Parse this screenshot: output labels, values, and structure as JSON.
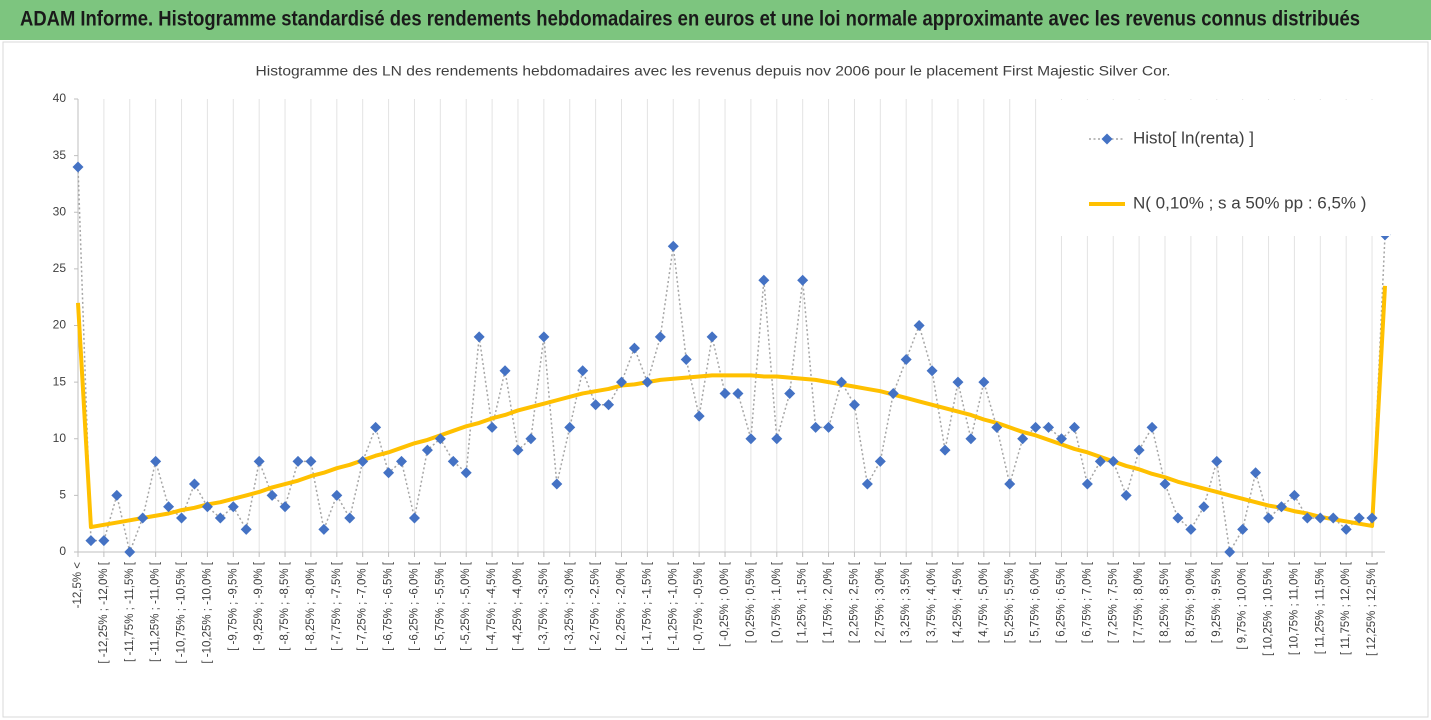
{
  "header": {
    "title": "ADAM Informe. Histogramme standardisé des rendements hebdomadaires en euros et une loi normale approximante avec les revenus connus distribués"
  },
  "chart_data": {
    "type": "line",
    "title": "Histogramme des LN des rendements hebdomadaires avec les revenus depuis nov 2006 pour le placement First Majestic Silver Cor.",
    "categories": [
      "-12,5% <",
      null,
      "[ -12,25% ; -12,0% [",
      null,
      "[ -11,75% ; -11,5% [",
      null,
      "[ -11,25% ; -11,0% [",
      null,
      "[ -10,75% ; -10,5% [",
      null,
      "[ -10,25% ; -10,0% [",
      null,
      "[ -9,75% ; -9,5% [",
      null,
      "[ -9,25% ; -9,0% [",
      null,
      "[ -8,75% ; -8,5% [",
      null,
      "[ -8,25% ; -8,0% [",
      null,
      "[ -7,75% ; -7,5% [",
      null,
      "[ -7,25% ; -7,0% [",
      null,
      "[ -6,75% ; -6,5% [",
      null,
      "[ -6,25% ; -6,0% [",
      null,
      "[ -5,75% ; -5,5% [",
      null,
      "[ -5,25% ; -5,0% [",
      null,
      "[ -4,75% ; -4,5% [",
      null,
      "[ -4,25% ; -4,0% [",
      null,
      "[ -3,75% ; -3,5% [",
      null,
      "[ -3,25% ; -3,0% [",
      null,
      "[ -2,75% ; -2,5% [",
      null,
      "[ -2,25% ; -2,0% [",
      null,
      "[ -1,75% ; -1,5% [",
      null,
      "[ -1,25% ; -1,0% [",
      null,
      "[ -0,75% ; -0,5% [",
      null,
      "[ -0,25% ; 0,0% [",
      null,
      "[ 0,25% ; 0,5% [",
      null,
      "[ 0,75% ; 1,0% [",
      null,
      "[ 1,25% ; 1,5% [",
      null,
      "[ 1,75% ; 2,0% [",
      null,
      "[ 2,25% ; 2,5% [",
      null,
      "[ 2,75% ; 3,0% [",
      null,
      "[ 3,25% ; 3,5% [",
      null,
      "[ 3,75% ; 4,0% [",
      null,
      "[ 4,25% ; 4,5% [",
      null,
      "[ 4,75% ; 5,0% [",
      null,
      "[ 5,25% ; 5,5% [",
      null,
      "[ 5,75% ; 6,0% [",
      null,
      "[ 6,25% ; 6,5% [",
      null,
      "[ 6,75% ; 7,0% [",
      null,
      "[ 7,25% ; 7,5% [",
      null,
      "[ 7,75% ; 8,0% [",
      null,
      "[ 8,25% ; 8,5% [",
      null,
      "[ 8,75% ; 9,0% [",
      null,
      "[ 9,25% ; 9,5% [",
      null,
      "[ 9,75% ; 10,0% [",
      null,
      "[ 10,25% ; 10,5% [",
      null,
      "[ 10,75% ; 11,0% [",
      null,
      "[ 11,25% ; 11,5% [",
      null,
      "[ 11,75% ; 12,0% [",
      null,
      "[ 12,25% ; 12,5% [",
      null
    ],
    "series": [
      {
        "name": "Histo[ ln(renta) ]",
        "color": "#4472c4",
        "line_color": "#a6a6a6",
        "dashed": true,
        "marker": "diamond",
        "values": [
          34,
          1,
          1,
          5,
          0,
          3,
          8,
          4,
          3,
          6,
          4,
          3,
          4,
          2,
          8,
          5,
          4,
          8,
          8,
          2,
          5,
          3,
          8,
          11,
          7,
          8,
          3,
          9,
          10,
          8,
          7,
          19,
          11,
          16,
          9,
          10,
          19,
          6,
          11,
          16,
          13,
          13,
          15,
          18,
          15,
          19,
          27,
          17,
          12,
          19,
          14,
          14,
          10,
          24,
          10,
          14,
          24,
          11,
          11,
          15,
          13,
          6,
          8,
          14,
          17,
          20,
          16,
          9,
          15,
          10,
          15,
          11,
          6,
          10,
          11,
          11,
          10,
          11,
          6,
          8,
          8,
          5,
          9,
          11,
          6,
          3,
          2,
          4,
          8,
          0,
          2,
          7,
          3,
          4,
          5,
          3,
          3,
          3,
          2,
          3,
          3,
          28
        ]
      },
      {
        "name": "N( 0,10% ; s a 50% pp : 6,5% )",
        "color": "#ffc000",
        "line_color": "#ffc000",
        "dashed": false,
        "marker": "none",
        "values": [
          22,
          2.2,
          2.4,
          2.6,
          2.8,
          3.0,
          3.2,
          3.4,
          3.7,
          3.9,
          4.2,
          4.4,
          4.7,
          5.0,
          5.3,
          5.7,
          6.0,
          6.3,
          6.7,
          7.0,
          7.4,
          7.7,
          8.1,
          8.5,
          8.8,
          9.2,
          9.6,
          9.9,
          10.3,
          10.7,
          11.1,
          11.4,
          11.8,
          12.1,
          12.5,
          12.8,
          13.1,
          13.4,
          13.7,
          14.0,
          14.2,
          14.4,
          14.7,
          14.8,
          15.0,
          15.2,
          15.3,
          15.4,
          15.5,
          15.6,
          15.6,
          15.6,
          15.6,
          15.5,
          15.5,
          15.4,
          15.3,
          15.2,
          15.0,
          14.8,
          14.6,
          14.4,
          14.2,
          13.9,
          13.6,
          13.3,
          13.0,
          12.7,
          12.4,
          12.1,
          11.7,
          11.4,
          11.0,
          10.6,
          10.3,
          9.9,
          9.5,
          9.1,
          8.8,
          8.4,
          8.0,
          7.6,
          7.3,
          6.9,
          6.6,
          6.2,
          5.9,
          5.6,
          5.3,
          5.0,
          4.7,
          4.4,
          4.1,
          3.9,
          3.6,
          3.4,
          3.1,
          2.9,
          2.7,
          2.5,
          2.3,
          23.5
        ]
      }
    ],
    "ylim": [
      0,
      40
    ],
    "yticks": [
      0,
      5,
      10,
      15,
      20,
      25,
      30,
      35,
      40
    ],
    "grid": "x",
    "legend": "top-right"
  }
}
